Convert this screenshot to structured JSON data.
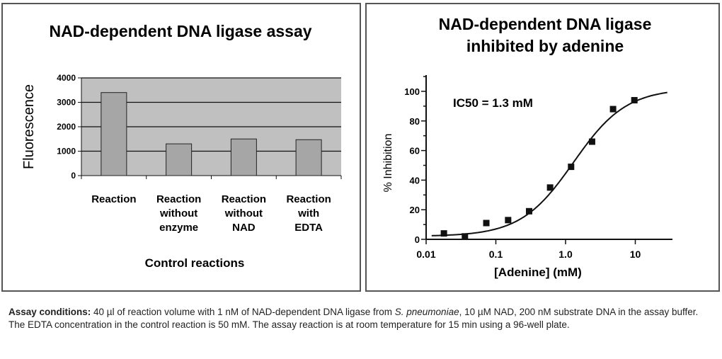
{
  "chart_data": [
    {
      "type": "bar",
      "title": "NAD-dependent DNA ligase assay",
      "xlabel": "Control reactions",
      "ylabel": "Fluorescence",
      "ylim": [
        0,
        4000
      ],
      "yticks": [
        "0",
        "1000",
        "2000",
        "3000",
        "4000"
      ],
      "grid": true,
      "categories": [
        [
          "Reaction"
        ],
        [
          "Reaction",
          "without",
          "enzyme"
        ],
        [
          "Reaction",
          "without",
          "NAD"
        ],
        [
          "Reaction",
          "with",
          "EDTA"
        ]
      ],
      "values": [
        3400,
        1300,
        1500,
        1470
      ],
      "colors": {
        "bar": "#a6a6a6",
        "plot_bg": "#c0c0c0"
      }
    },
    {
      "type": "scatter",
      "title": [
        "NAD-dependent DNA ligase",
        "inhibited by adenine"
      ],
      "xlabel": "[Adenine] (mM)",
      "ylabel": "% Inhibition",
      "xscale": "log",
      "xlim": [
        0.01,
        30
      ],
      "ylim": [
        0,
        110
      ],
      "xticks": [
        "0.01",
        "0.1",
        "1.0",
        "10"
      ],
      "yticks": [
        "0",
        "20",
        "40",
        "60",
        "80",
        "100"
      ],
      "annotation": "IC50 = 1.3 mM",
      "x": [
        0.018,
        0.036,
        0.073,
        0.15,
        0.3,
        0.6,
        1.2,
        2.4,
        4.8,
        9.7
      ],
      "y": [
        4,
        2,
        11,
        13,
        19,
        35,
        49,
        66,
        88,
        94
      ],
      "fit": {
        "model": "hill",
        "ic50": 1.3,
        "bottom": 2,
        "top": 102,
        "slope": 1.15
      }
    }
  ],
  "caption": {
    "lead": "Assay conditions:",
    "text1": " 40 µl of reaction volume with 1 nM of NAD-dependent DNA ligase from ",
    "species": "S. pneumoniae",
    "text2": ", 10 µM NAD, 200 nM substrate DNA in the assay buffer. The EDTA concentration in the control reaction is 50 mM.  The assay reaction is at room temperature for 15 min using a 96-well plate."
  }
}
